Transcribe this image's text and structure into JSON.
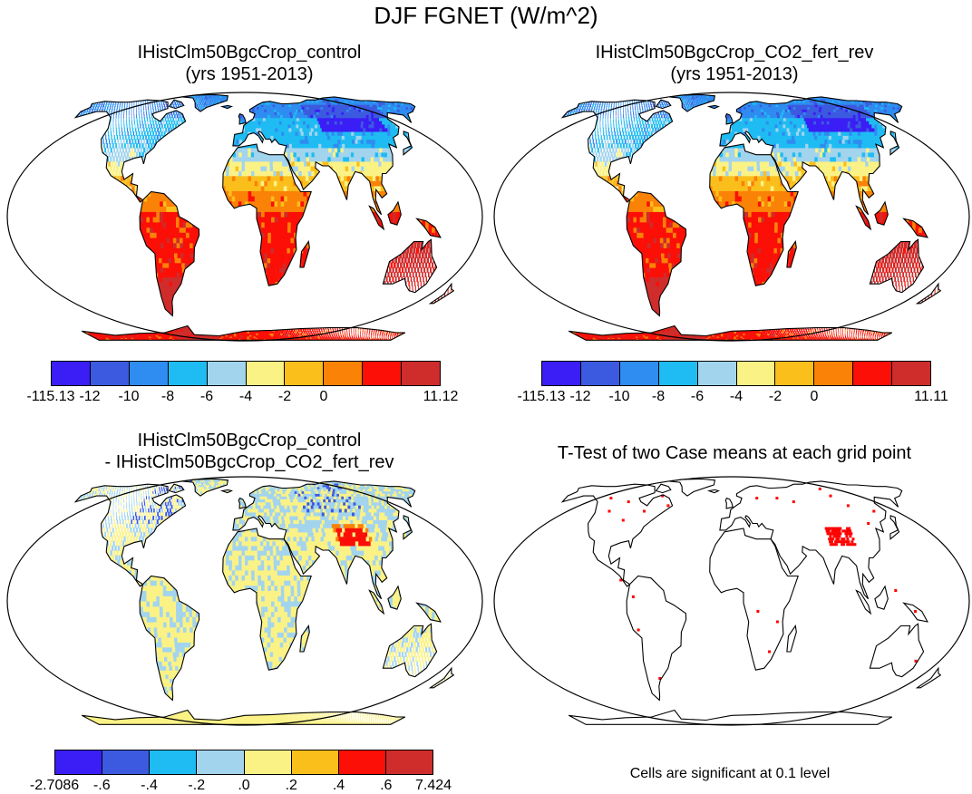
{
  "title": "DJF FGNET (W/m^2)",
  "panels": [
    {
      "title1": "IHistClm50BgcCrop_control",
      "title2": "(yrs 1951-2013)"
    },
    {
      "title1": "IHistClm50BgcCrop_CO2_fert_rev",
      "title2": "(yrs 1951-2013)"
    },
    {
      "title1": "IHistClm50BgcCrop_control",
      "title2": "- IHistClm50BgcCrop_CO2_fert_rev"
    },
    {
      "title1": "T-Test of two Case means at each grid point",
      "title2": ""
    }
  ],
  "colorbars": {
    "cb1": {
      "colors": [
        "#3a1ef5",
        "#3c5ae0",
        "#2f8cf0",
        "#1ebcf2",
        "#a3d4ee",
        "#fbf286",
        "#fbbf1c",
        "#fa8207",
        "#fb0f07",
        "#cf2c2c"
      ],
      "labels": [
        "-115.13",
        "-12",
        "-10",
        "-8",
        "-6",
        "-4",
        "-2",
        "0",
        "11.12"
      ]
    },
    "cb2": {
      "colors": [
        "#3a1ef5",
        "#3c5ae0",
        "#2f8cf0",
        "#1ebcf2",
        "#a3d4ee",
        "#fbf286",
        "#fbbf1c",
        "#fa8207",
        "#fb0f07",
        "#cf2c2c"
      ],
      "labels": [
        "-115.13",
        "-12",
        "-10",
        "-8",
        "-6",
        "-4",
        "-2",
        "0",
        "11.11"
      ]
    },
    "cb3": {
      "colors": [
        "#3a1ef5",
        "#3c5ae0",
        "#1ebcf2",
        "#a3d4ee",
        "#fbf286",
        "#fbbf1c",
        "#fb0f07",
        "#cf2c2c"
      ],
      "labels": [
        "-2.7086",
        "-.6",
        "-.4",
        "-.2",
        ".0",
        ".2",
        ".4",
        ".6",
        "7.424"
      ]
    }
  },
  "significance_note": "Cells are significant at 0.1 level",
  "colors": {
    "land_outline": "#000000",
    "significant": "#ff0000"
  }
}
